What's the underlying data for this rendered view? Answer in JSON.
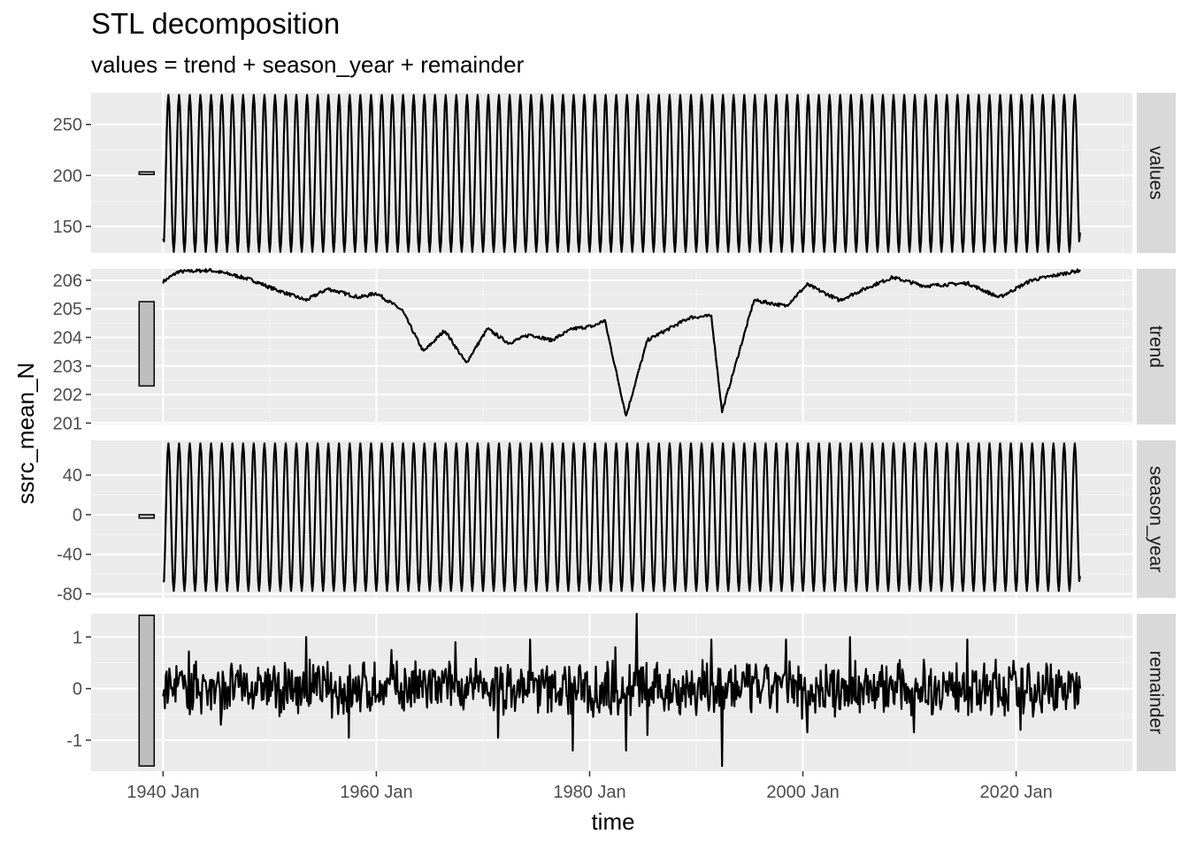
{
  "chart_data": {
    "type": "line",
    "title": "STL decomposition",
    "subtitle": "values = trend + season_year + remainder",
    "xlabel": "time",
    "ylabel": "ssrc_mean_N",
    "x_range": [
      "1940-01",
      "2026-01"
    ],
    "x_ticks": [
      "1940 Jan",
      "1960 Jan",
      "1980 Jan",
      "2000 Jan",
      "2020 Jan"
    ],
    "x_tick_years": [
      1940,
      1960,
      1980,
      2000,
      2020
    ],
    "line_color": "#000000",
    "panel_background": "#EBEBEB",
    "strip_background": "#D9D9D9",
    "scale_bar_fill": "#BEBEBE",
    "grid": true,
    "panels": [
      {
        "name": "values",
        "ylim": [
          124,
          281
        ],
        "y_ticks": [
          150,
          200,
          250
        ],
        "y_tick_labels": [
          "150",
          "200",
          "250"
        ],
        "scale_bar": [
          201.5,
          203.5
        ],
        "series_points": [
          [
            "1940-01",
            138
          ],
          [
            "1940-07",
            276
          ],
          [
            "1960-01",
            128
          ],
          [
            "1960-07",
            275
          ],
          [
            "1980-01",
            128
          ],
          [
            "1980-07",
            271
          ],
          [
            "1983-01",
            125
          ],
          [
            "1992-01",
            125
          ],
          [
            "2000-01",
            127
          ],
          [
            "2000-07",
            275
          ],
          [
            "2012-07",
            279
          ],
          [
            "2020-07",
            278
          ],
          [
            "2026-01",
            144
          ]
        ]
      },
      {
        "name": "trend",
        "ylim": [
          200.95,
          206.4
        ],
        "y_ticks": [
          201,
          202,
          203,
          204,
          205,
          206
        ],
        "y_tick_labels": [
          "201",
          "202",
          "203",
          "204",
          "205",
          "206"
        ],
        "scale_bar": [
          202.3,
          205.25
        ],
        "series_points": [
          [
            "1940-01",
            205.95
          ],
          [
            "1941-06",
            206.3
          ],
          [
            "1944-06",
            206.35
          ],
          [
            "1946-06",
            206.2
          ],
          [
            "1948-06",
            206.0
          ],
          [
            "1950-01",
            205.75
          ],
          [
            "1953-06",
            205.3
          ],
          [
            "1955-06",
            205.7
          ],
          [
            "1958-06",
            205.4
          ],
          [
            "1960-01",
            205.55
          ],
          [
            "1962-06",
            204.95
          ],
          [
            "1964-06",
            203.5
          ],
          [
            "1966-06",
            204.25
          ],
          [
            "1968-06",
            203.1
          ],
          [
            "1970-06",
            204.3
          ],
          [
            "1972-06",
            203.8
          ],
          [
            "1974-06",
            204.1
          ],
          [
            "1976-06",
            203.9
          ],
          [
            "1978-06",
            204.3
          ],
          [
            "1980-06",
            204.4
          ],
          [
            "1981-06",
            204.6
          ],
          [
            "1983-06",
            201.25
          ],
          [
            "1985-06",
            203.9
          ],
          [
            "1987-06",
            204.3
          ],
          [
            "1989-06",
            204.7
          ],
          [
            "1991-06",
            204.75
          ],
          [
            "1992-06",
            201.4
          ],
          [
            "1995-06",
            205.3
          ],
          [
            "1998-06",
            205.1
          ],
          [
            "2000-06",
            205.85
          ],
          [
            "2003-06",
            205.3
          ],
          [
            "2006-06",
            205.8
          ],
          [
            "2008-06",
            206.1
          ],
          [
            "2011-06",
            205.8
          ],
          [
            "2015-06",
            205.9
          ],
          [
            "2018-06",
            205.4
          ],
          [
            "2021-06",
            206.0
          ],
          [
            "2026-01",
            206.35
          ]
        ]
      },
      {
        "name": "season_year",
        "ylim": [
          -84,
          75
        ],
        "y_ticks": [
          -80,
          -40,
          0,
          40
        ],
        "y_tick_labels": [
          "-80",
          "-40",
          "0",
          "40"
        ],
        "scale_bar": [
          -3.5,
          0
        ],
        "series_points": [
          [
            "1940-01",
            -68
          ],
          [
            "1940-07",
            72
          ],
          [
            "1960-01",
            -77
          ],
          [
            "1960-07",
            72
          ],
          [
            "1980-01",
            -77
          ],
          [
            "1980-07",
            72
          ],
          [
            "2000-01",
            -77
          ],
          [
            "2000-07",
            72
          ],
          [
            "2025-07",
            72
          ],
          [
            "2026-01",
            -62
          ]
        ]
      },
      {
        "name": "remainder",
        "ylim": [
          -1.6,
          1.45
        ],
        "y_ticks": [
          -1,
          0,
          1
        ],
        "y_tick_labels": [
          "-1",
          "0",
          "1"
        ],
        "scale_bar": [
          -1.5,
          1.42
        ],
        "series_points": [
          [
            "1940-01",
            -0.15
          ],
          [
            "1942-06",
            0.72
          ],
          [
            "1945-06",
            -0.7
          ],
          [
            "1953-06",
            1.0
          ],
          [
            "1957-06",
            -0.95
          ],
          [
            "1961-06",
            0.75
          ],
          [
            "1967-06",
            0.9
          ],
          [
            "1971-06",
            -0.95
          ],
          [
            "1974-06",
            0.95
          ],
          [
            "1978-06",
            -1.2
          ],
          [
            "1982-06",
            0.8
          ],
          [
            "1983-06",
            -1.2
          ],
          [
            "1984-06",
            1.45
          ],
          [
            "1985-06",
            -0.9
          ],
          [
            "1991-06",
            0.95
          ],
          [
            "1992-06",
            -1.5
          ],
          [
            "1998-06",
            0.95
          ],
          [
            "2000-06",
            -0.85
          ],
          [
            "2004-06",
            1.0
          ],
          [
            "2010-06",
            -0.85
          ],
          [
            "2015-06",
            0.95
          ],
          [
            "2020-06",
            -0.8
          ],
          [
            "2026-01",
            0.0
          ]
        ]
      }
    ]
  }
}
